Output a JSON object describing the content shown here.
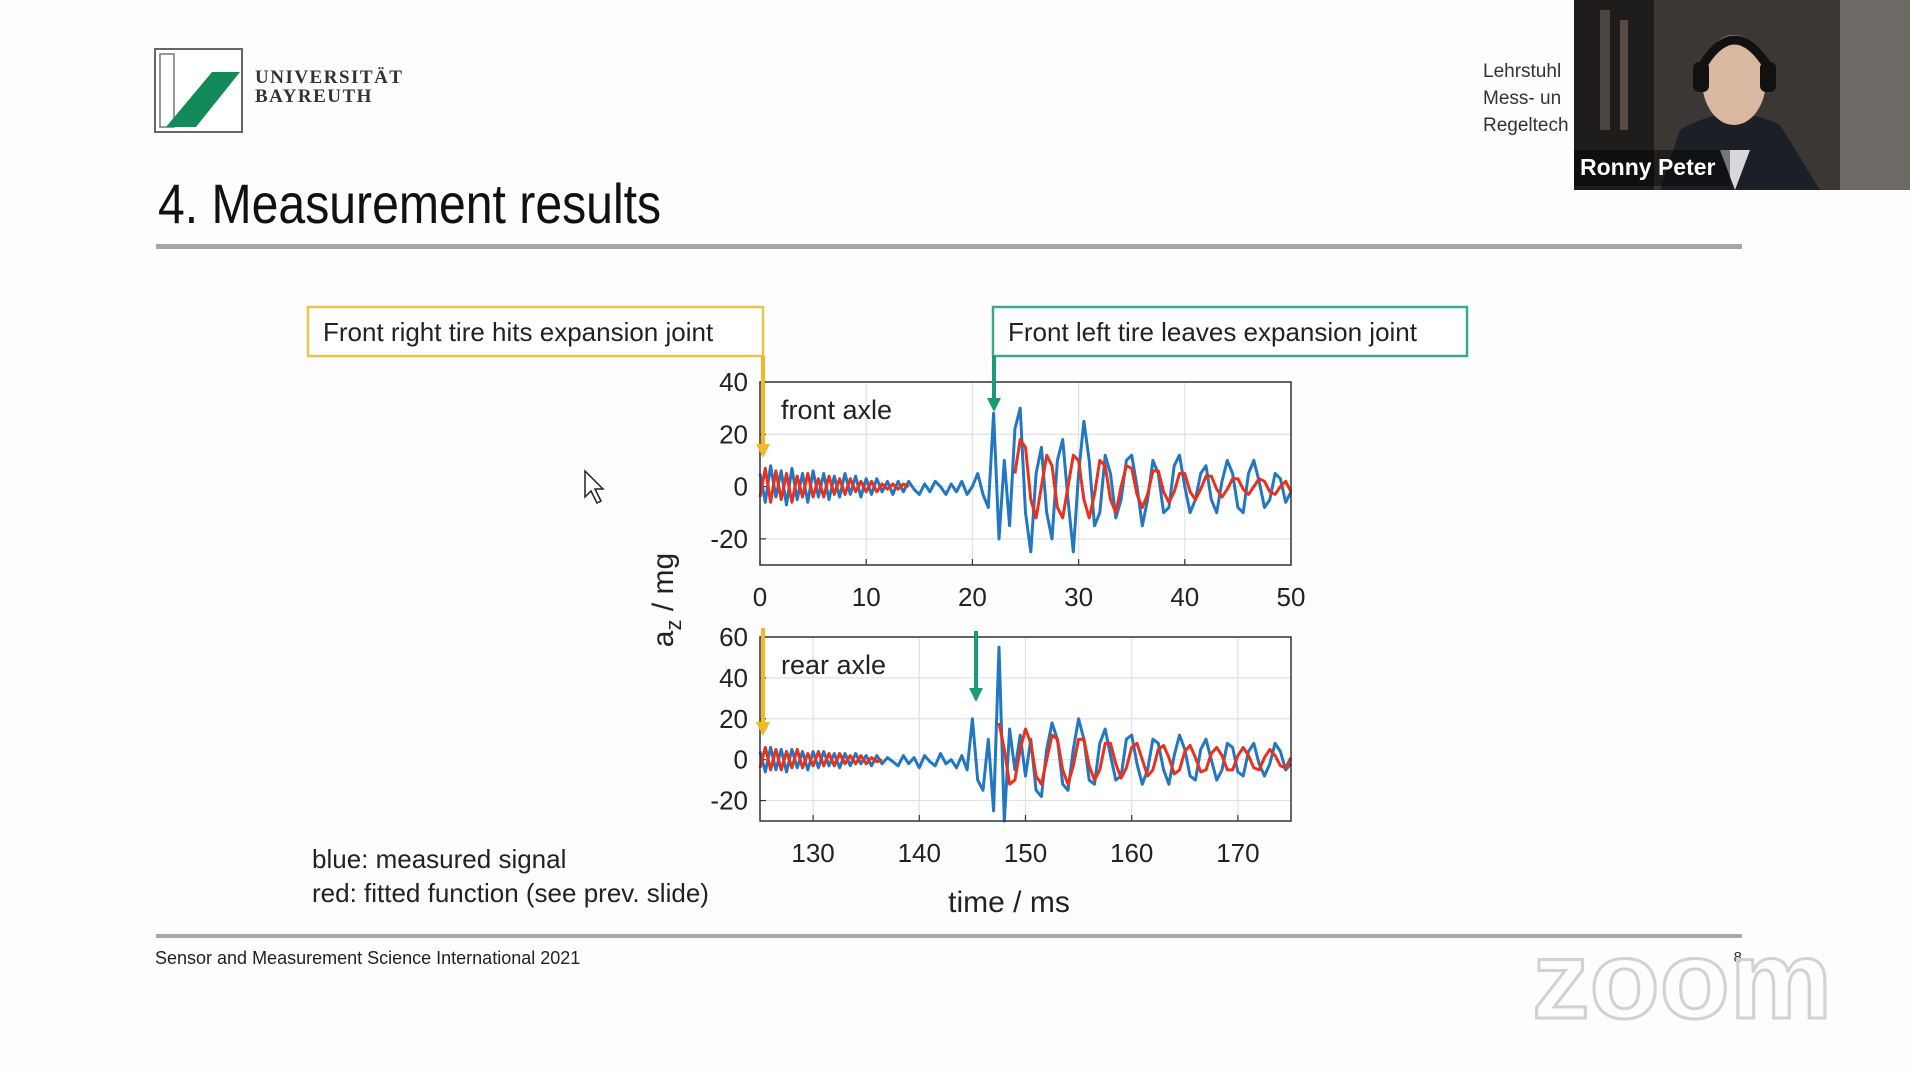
{
  "slide": {
    "logo_lines": [
      "UNIVERSITÄT",
      "BAYREUTH"
    ],
    "chair_lines": [
      "Lehrstuhl",
      "Mess- un",
      "Regeltech"
    ],
    "title": "4. Measurement results",
    "callouts": [
      "Front right tire hits expansion joint",
      "Front left tire leaves expansion joint"
    ],
    "notes": [
      "blue: measured signal",
      "red: fitted function (see prev. slide)"
    ],
    "footer": "Sensor and Measurement Science International 2021",
    "page": 8
  },
  "video": {
    "name": "Ronny Peter"
  },
  "watermark": "zoom",
  "figure": {
    "ylabel": {
      "main": "a",
      "sub": "z",
      "rest": " / mg"
    },
    "xlabel": "time / ms"
  },
  "chart_data": [
    {
      "type": "line",
      "annotation": "front axle",
      "x": [
        0,
        0.5,
        1,
        1.5,
        2,
        2.5,
        3,
        3.5,
        4,
        4.5,
        5,
        5.5,
        6,
        6.5,
        7,
        7.5,
        8,
        8.5,
        9,
        9.5,
        10,
        10.5,
        11,
        11.5,
        12,
        12.5,
        13,
        13.5,
        14,
        14.5,
        15,
        15.5,
        16,
        16.5,
        17,
        17.5,
        18,
        18.5,
        19,
        19.5,
        20,
        20.5,
        21,
        21.5,
        22,
        22.5,
        23,
        23.5,
        24,
        24.5,
        25,
        25.5,
        26,
        26.5,
        27,
        27.5,
        28,
        28.5,
        29,
        29.5,
        30,
        30.5,
        31,
        31.5,
        32,
        32.5,
        33,
        33.5,
        34,
        34.5,
        35,
        35.5,
        36,
        36.5,
        37,
        37.5,
        38,
        38.5,
        39,
        39.5,
        40,
        40.5,
        41,
        41.5,
        42,
        42.5,
        43,
        43.5,
        44,
        44.5,
        45,
        45.5,
        46,
        46.5,
        47,
        47.5,
        48,
        48.5,
        49,
        49.5,
        50
      ],
      "series": [
        {
          "color": "#2277c2",
          "values": [
            5,
            -6,
            8,
            -4,
            6,
            -7,
            7,
            -5,
            5,
            -6,
            6,
            -4,
            5,
            -5,
            4,
            -4,
            5,
            -3,
            4,
            -4,
            3,
            -3,
            3,
            -2,
            2,
            -3,
            2,
            -2,
            2,
            -1,
            -3,
            1,
            -2,
            2,
            0,
            -3,
            1,
            -2,
            2,
            -3,
            0,
            5,
            -3,
            -8,
            28,
            -20,
            10,
            -15,
            22,
            30,
            -10,
            -25,
            5,
            15,
            -10,
            -20,
            10,
            18,
            -5,
            -25,
            5,
            25,
            10,
            -15,
            -10,
            12,
            5,
            -12,
            -5,
            10,
            12,
            0,
            -15,
            -5,
            10,
            5,
            -10,
            -8,
            8,
            12,
            0,
            -10,
            -5,
            5,
            8,
            -5,
            -10,
            2,
            10,
            5,
            -8,
            -10,
            5,
            10,
            2,
            -8,
            -5,
            5,
            3,
            -6,
            -2
          ]
        },
        {
          "color": "#e8321e",
          "values": [
            -4,
            7,
            -6,
            6,
            -5,
            5,
            -6,
            4,
            -4,
            5,
            -4,
            3,
            -4,
            4,
            -3,
            3,
            -3,
            3,
            -2,
            2,
            -2,
            2,
            -2,
            1,
            -1,
            1,
            -1,
            1,
            0,
            null,
            null,
            null,
            null,
            null,
            null,
            null,
            null,
            null,
            null,
            null,
            null,
            null,
            null,
            null,
            null,
            null,
            null,
            null,
            5,
            18,
            15,
            -5,
            -12,
            0,
            12,
            8,
            -8,
            -12,
            0,
            12,
            10,
            -5,
            -12,
            -3,
            10,
            8,
            -5,
            -10,
            0,
            8,
            7,
            -3,
            -8,
            -3,
            6,
            6,
            -2,
            -6,
            -2,
            5,
            5,
            -2,
            -5,
            -1,
            4,
            4,
            -1,
            -4,
            -1,
            3,
            3,
            -1,
            -3,
            0,
            3,
            2,
            -2,
            -3,
            0,
            2,
            -2
          ]
        }
      ],
      "xlim": [
        0,
        50
      ],
      "ylim": [
        -30,
        40
      ],
      "xticks": [
        0,
        10,
        20,
        30,
        40,
        50
      ],
      "yticks": [
        -20,
        0,
        20,
        40
      ],
      "grid": true
    },
    {
      "type": "line",
      "annotation": "rear axle",
      "x": [
        125,
        125.5,
        126,
        126.5,
        127,
        127.5,
        128,
        128.5,
        129,
        129.5,
        130,
        130.5,
        131,
        131.5,
        132,
        132.5,
        133,
        133.5,
        134,
        134.5,
        135,
        135.5,
        136,
        136.5,
        137,
        137.5,
        138,
        138.5,
        139,
        139.5,
        140,
        140.5,
        141,
        141.5,
        142,
        142.5,
        143,
        143.5,
        144,
        144.5,
        145,
        145.5,
        146,
        146.5,
        147,
        147.5,
        148,
        148.5,
        149,
        149.5,
        150,
        150.5,
        151,
        151.5,
        152,
        152.5,
        153,
        153.5,
        154,
        154.5,
        155,
        155.5,
        156,
        156.5,
        157,
        157.5,
        158,
        158.5,
        159,
        159.5,
        160,
        160.5,
        161,
        161.5,
        162,
        162.5,
        163,
        163.5,
        164,
        164.5,
        165,
        165.5,
        166,
        166.5,
        167,
        167.5,
        168,
        168.5,
        169,
        169.5,
        170,
        170.5,
        171,
        171.5,
        172,
        172.5,
        173,
        173.5,
        174,
        174.5,
        175
      ],
      "series": [
        {
          "color": "#2277c2",
          "values": [
            4,
            -6,
            6,
            -5,
            5,
            -6,
            5,
            -4,
            4,
            -5,
            4,
            -4,
            4,
            -3,
            3,
            -4,
            3,
            -3,
            3,
            -2,
            2,
            -3,
            2,
            -2,
            1,
            -1,
            -3,
            2,
            -2,
            1,
            -4,
            2,
            -1,
            -3,
            3,
            -2,
            0,
            -4,
            2,
            -5,
            20,
            -10,
            -15,
            10,
            -25,
            55,
            -30,
            15,
            -5,
            12,
            -8,
            10,
            -15,
            -18,
            5,
            18,
            10,
            -12,
            -15,
            5,
            20,
            10,
            -10,
            -12,
            8,
            15,
            2,
            -10,
            -8,
            10,
            12,
            -2,
            -12,
            -5,
            10,
            8,
            -5,
            -12,
            2,
            12,
            5,
            -8,
            -10,
            5,
            10,
            0,
            -10,
            -5,
            8,
            6,
            -6,
            -8,
            4,
            8,
            -2,
            -8,
            -2,
            8,
            4,
            -5,
            -2
          ]
        },
        {
          "color": "#e8321e",
          "values": [
            -4,
            6,
            -5,
            5,
            -5,
            4,
            -4,
            5,
            -4,
            3,
            -3,
            4,
            -3,
            3,
            -3,
            3,
            -2,
            2,
            -2,
            2,
            -2,
            1,
            -1,
            0,
            null,
            null,
            null,
            null,
            null,
            null,
            null,
            null,
            null,
            null,
            null,
            null,
            null,
            null,
            null,
            null,
            null,
            null,
            null,
            null,
            null,
            18,
            5,
            -12,
            -10,
            5,
            15,
            8,
            -8,
            -12,
            0,
            12,
            10,
            -5,
            -12,
            -3,
            10,
            10,
            -3,
            -10,
            -5,
            8,
            8,
            -2,
            -9,
            -4,
            6,
            8,
            0,
            -8,
            -5,
            5,
            7,
            1,
            -7,
            -5,
            4,
            7,
            1,
            -6,
            -5,
            3,
            6,
            2,
            -5,
            -5,
            2,
            6,
            2,
            -4,
            -5,
            1,
            5,
            2,
            -3,
            -4,
            1
          ]
        }
      ],
      "xlim": [
        125,
        175
      ],
      "ylim": [
        -30,
        60
      ],
      "xticks": [
        130,
        140,
        150,
        160,
        170
      ],
      "yticks": [
        -20,
        0,
        20,
        40,
        60
      ],
      "grid": true
    }
  ]
}
